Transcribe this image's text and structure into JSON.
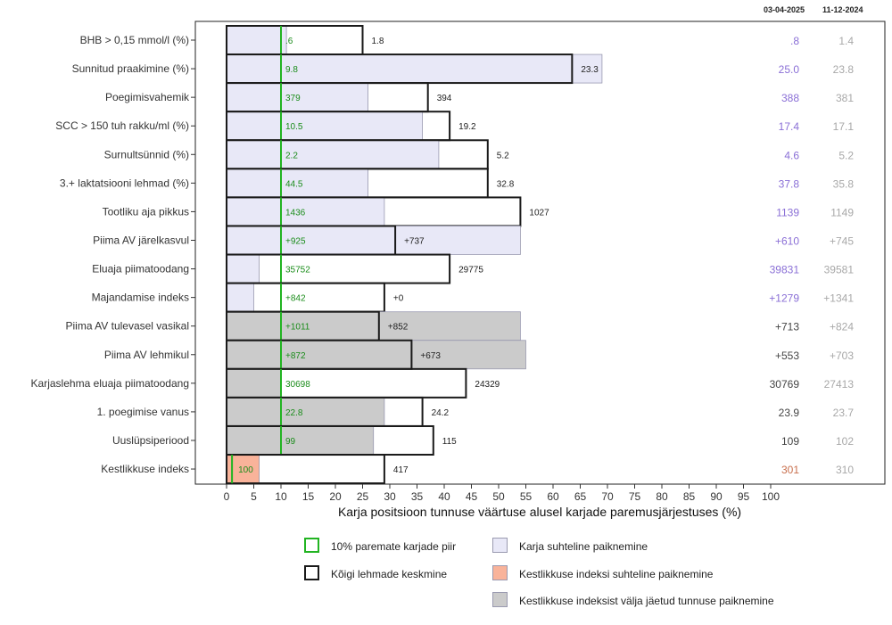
{
  "header": {
    "date_current": "03-04-2025",
    "date_previous": "11-12-2024"
  },
  "colors": {
    "herd_fill": "#e8e8f7",
    "herd_stroke": "#9a9ab0",
    "durability_fill": "#f9b39a",
    "excluded_fill": "#cbcbcb",
    "top10_line": "#22b422",
    "avg_box": "#1a1a1a",
    "green_text": "#1a8c1a",
    "purple_text": "#8a6fd6",
    "gray_text": "#a8a8a8",
    "dark_text": "#444444",
    "orange_text": "#c9704e"
  },
  "chart_data": {
    "type": "bar",
    "xlabel": "Karja positsioon tunnuse väärtuse alusel karjade paremusjärjestuses (%)",
    "xlim": [
      0,
      100
    ],
    "xticks": [
      0,
      5,
      10,
      15,
      20,
      25,
      30,
      35,
      40,
      45,
      50,
      55,
      60,
      65,
      70,
      75,
      80,
      85,
      90,
      95,
      100
    ],
    "categories": [
      "BHB > 0,15 mmol/l (%)",
      "Sunnitud praakimine (%)",
      "Poegimisvahemik",
      "SCC > 150 tuh rakku/ml (%)",
      "Surnultsünnid (%)",
      "3.+ laktatsiooni lehmad (%)",
      "Tootliku aja pikkus",
      "Piima AV järelkasvul",
      "Eluaja piimatoodang",
      "Majandamise indeks",
      "Piima AV tulevasel vasikal",
      "Piima AV lehmikul",
      "Karjaslehma eluaja piimatoodang",
      "1. poegimise vanus",
      "Uuslüpsiperiood",
      "Kestlikkuse indeks"
    ],
    "series": [
      {
        "name": "Karja suhteline paiknemine",
        "values": [
          11,
          69,
          26,
          36,
          39,
          26,
          29,
          54,
          6,
          5,
          54,
          55,
          10,
          29,
          27,
          6
        ],
        "kind": [
          "herd",
          "herd",
          "herd",
          "herd",
          "herd",
          "herd",
          "herd",
          "herd",
          "herd",
          "herd",
          "excluded",
          "excluded",
          "excluded",
          "excluded",
          "excluded",
          "durability"
        ]
      },
      {
        "name": "Kõigi lehmade keskmine",
        "values": [
          25,
          63.5,
          37,
          41,
          48,
          48,
          54,
          31,
          41,
          29,
          28,
          34,
          44,
          36,
          38,
          29
        ]
      },
      {
        "name": "10% paremate karjade piir",
        "values": [
          10,
          10,
          10,
          10,
          10,
          10,
          10,
          10,
          10,
          10,
          10,
          10,
          10,
          10,
          10,
          1
        ]
      }
    ],
    "top10_labels": [
      ".6",
      "9.8",
      "379",
      "10.5",
      "2.2",
      "44.5",
      "1436",
      "+925",
      "35752",
      "+842",
      "+1011",
      "+872",
      "30698",
      "22.8",
      "99",
      "100"
    ],
    "avg_labels": [
      "1.8",
      "23.3",
      "394",
      "19.2",
      "5.2",
      "32.8",
      "1027",
      "+737",
      "29775",
      "+0",
      "+852",
      "+673",
      "24329",
      "24.2",
      "115",
      "417"
    ],
    "current_values": [
      ".8",
      "25.0",
      "388",
      "17.4",
      "4.6",
      "37.8",
      "1139",
      "+610",
      "39831",
      "+1279",
      "+713",
      "+553",
      "30769",
      "23.9",
      "109",
      "301"
    ],
    "previous_values": [
      "1.4",
      "23.8",
      "381",
      "17.1",
      "5.2",
      "35.8",
      "1149",
      "+745",
      "39581",
      "+1341",
      "+824",
      "+703",
      "27413",
      "23.7",
      "102",
      "310"
    ],
    "legend": {
      "top10": "10% paremate karjade piir",
      "average": "Kõigi lehmade keskmine",
      "herd": "Karja suhteline paiknemine",
      "durability": "Kestlikkuse indeksi suhteline paiknemine",
      "excluded": "Kestlikkuse indeksist välja jäetud tunnuse paiknemine"
    },
    "grid": false
  }
}
